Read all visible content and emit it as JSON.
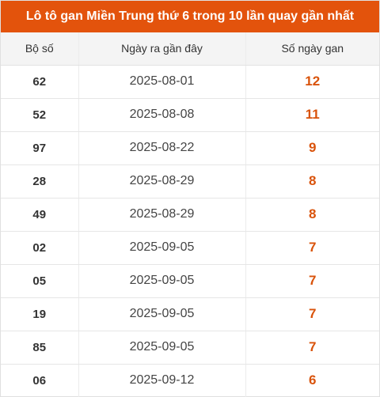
{
  "title": "Lô tô gan Miền Trung thứ 6 trong 10 lần quay gần nhất",
  "columns": [
    "Bộ số",
    "Ngày ra gần đây",
    "Số ngày gan"
  ],
  "rows": [
    {
      "number": "62",
      "date": "2025-08-01",
      "days": "12"
    },
    {
      "number": "52",
      "date": "2025-08-08",
      "days": "11"
    },
    {
      "number": "97",
      "date": "2025-08-22",
      "days": "9"
    },
    {
      "number": "28",
      "date": "2025-08-29",
      "days": "8"
    },
    {
      "number": "49",
      "date": "2025-08-29",
      "days": "8"
    },
    {
      "number": "02",
      "date": "2025-09-05",
      "days": "7"
    },
    {
      "number": "05",
      "date": "2025-09-05",
      "days": "7"
    },
    {
      "number": "19",
      "date": "2025-09-05",
      "days": "7"
    },
    {
      "number": "85",
      "date": "2025-09-05",
      "days": "7"
    },
    {
      "number": "06",
      "date": "2025-09-12",
      "days": "6"
    }
  ],
  "colors": {
    "header_bg": "#e3530c",
    "accent_text": "#d9530b"
  }
}
